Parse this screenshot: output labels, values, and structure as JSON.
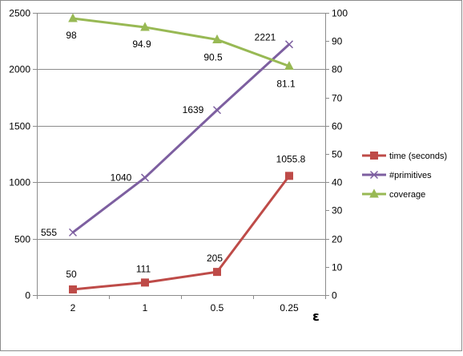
{
  "chart_data": {
    "type": "line",
    "title": "",
    "xlabel": "ε",
    "ylabel": "",
    "ylabel_right": "",
    "categories": [
      "2",
      "1",
      "0.5",
      "0.25"
    ],
    "ylim": [
      0,
      2500
    ],
    "y_ticks": [
      "0",
      "500",
      "1000",
      "1500",
      "2000",
      "2500"
    ],
    "y2lim": [
      0,
      100
    ],
    "y2_ticks": [
      "0",
      "10",
      "20",
      "30",
      "40",
      "50",
      "60",
      "70",
      "80",
      "90",
      "100"
    ],
    "grid": true,
    "legend_position": "right",
    "series": [
      {
        "name": "time (seconds)",
        "axis": "left",
        "marker": "square",
        "color": "#be4b48",
        "values": [
          50,
          111,
          205,
          1055.8
        ],
        "labels": [
          "50",
          "111",
          "205",
          "1055.8"
        ]
      },
      {
        "name": "#primitives",
        "axis": "left",
        "marker": "x",
        "color": "#7d5fa0",
        "values": [
          555,
          1040,
          1639,
          2221
        ],
        "labels": [
          "555",
          "1040",
          "1639",
          "2221"
        ]
      },
      {
        "name": "coverage",
        "axis": "right",
        "marker": "triangle",
        "color": "#98b954",
        "values": [
          98,
          94.9,
          90.5,
          81.1
        ],
        "labels": [
          "98",
          "94.9",
          "90.5",
          "81.1"
        ]
      }
    ]
  }
}
